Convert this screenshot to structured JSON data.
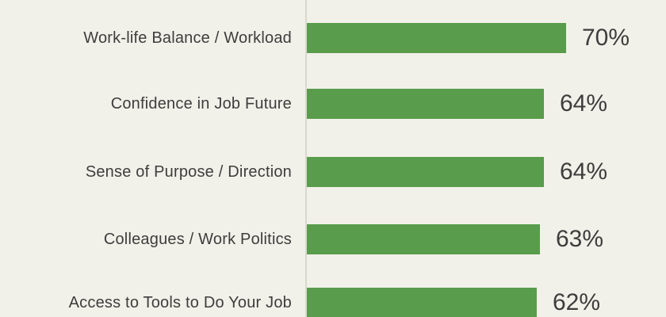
{
  "chart_data": {
    "type": "bar",
    "orientation": "horizontal",
    "title": "",
    "xlabel": "",
    "ylabel": "",
    "grid": false,
    "legend": false,
    "categories": [
      "Work-life Balance / Workload",
      "Confidence in Job Future",
      "Sense of Purpose / Direction",
      "Colleagues / Work Politics",
      "Access to Tools to Do Your Job"
    ],
    "values": [
      70,
      64,
      64,
      63,
      62
    ],
    "value_labels": [
      "70%",
      "64%",
      "64%",
      "63%",
      "62%"
    ],
    "xlim": [
      0,
      100
    ],
    "bar_color": "#599c4c",
    "background_color": "#f2f1e9",
    "axis_line_color": "#d9d8cd",
    "text_color": "#3d3d3d"
  }
}
